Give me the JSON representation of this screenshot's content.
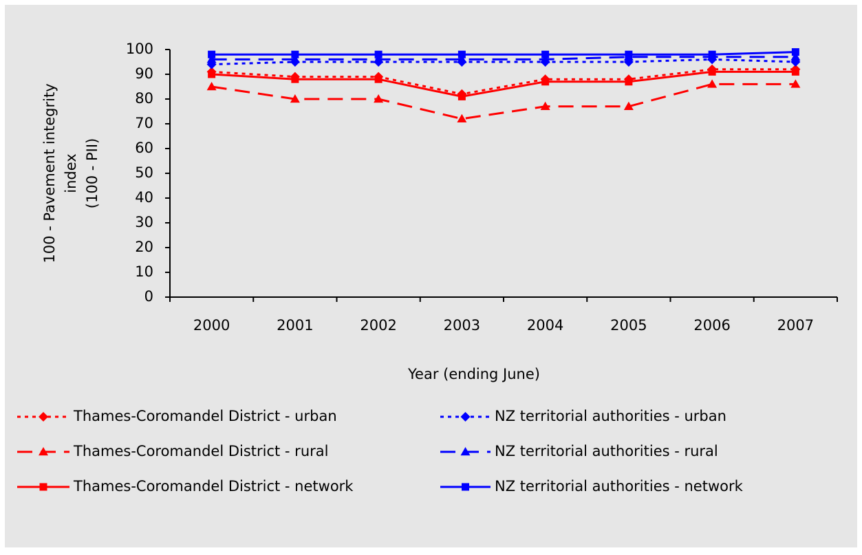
{
  "chart_data": {
    "type": "line",
    "y_label": [
      "100 - Pavement integrity",
      "index",
      "(100 - PII)"
    ],
    "x_label": "Year (ending June)",
    "categories": [
      "2000",
      "2001",
      "2002",
      "2003",
      "2004",
      "2005",
      "2006",
      "2007"
    ],
    "ylim": [
      0,
      100
    ],
    "yticks": [
      0,
      10,
      20,
      30,
      40,
      50,
      60,
      70,
      80,
      90,
      100
    ],
    "grid": false,
    "legend": "bottom",
    "series": [
      {
        "name": "Thames-Coromandel District - urban",
        "color": "#ff0000",
        "marker": "diamond",
        "line_style": "dotted",
        "values": [
          91,
          89,
          89,
          82,
          88,
          88,
          92,
          92
        ]
      },
      {
        "name": "NZ territorial authorities - urban",
        "color": "#0000ff",
        "marker": "diamond",
        "line_style": "dotted",
        "values": [
          94,
          95,
          95,
          95,
          95,
          95,
          96,
          95
        ]
      },
      {
        "name": "Thames-Coromandel District - rural",
        "color": "#ff0000",
        "marker": "triangle",
        "line_style": "dashed",
        "values": [
          85,
          80,
          80,
          72,
          77,
          77,
          86,
          86
        ]
      },
      {
        "name": "NZ territorial authorities - rural",
        "color": "#0000ff",
        "marker": "triangle",
        "line_style": "dashed",
        "values": [
          96,
          96,
          96,
          96,
          96,
          97,
          97,
          97
        ]
      },
      {
        "name": "Thames-Coromandel District - network",
        "color": "#ff0000",
        "marker": "square",
        "line_style": "solid",
        "values": [
          90,
          88,
          88,
          81,
          87,
          87,
          91,
          91
        ]
      },
      {
        "name": "NZ territorial authorities - network",
        "color": "#0000ff",
        "marker": "square",
        "line_style": "solid",
        "values": [
          98,
          98,
          98,
          98,
          98,
          98,
          98,
          99
        ]
      }
    ]
  }
}
